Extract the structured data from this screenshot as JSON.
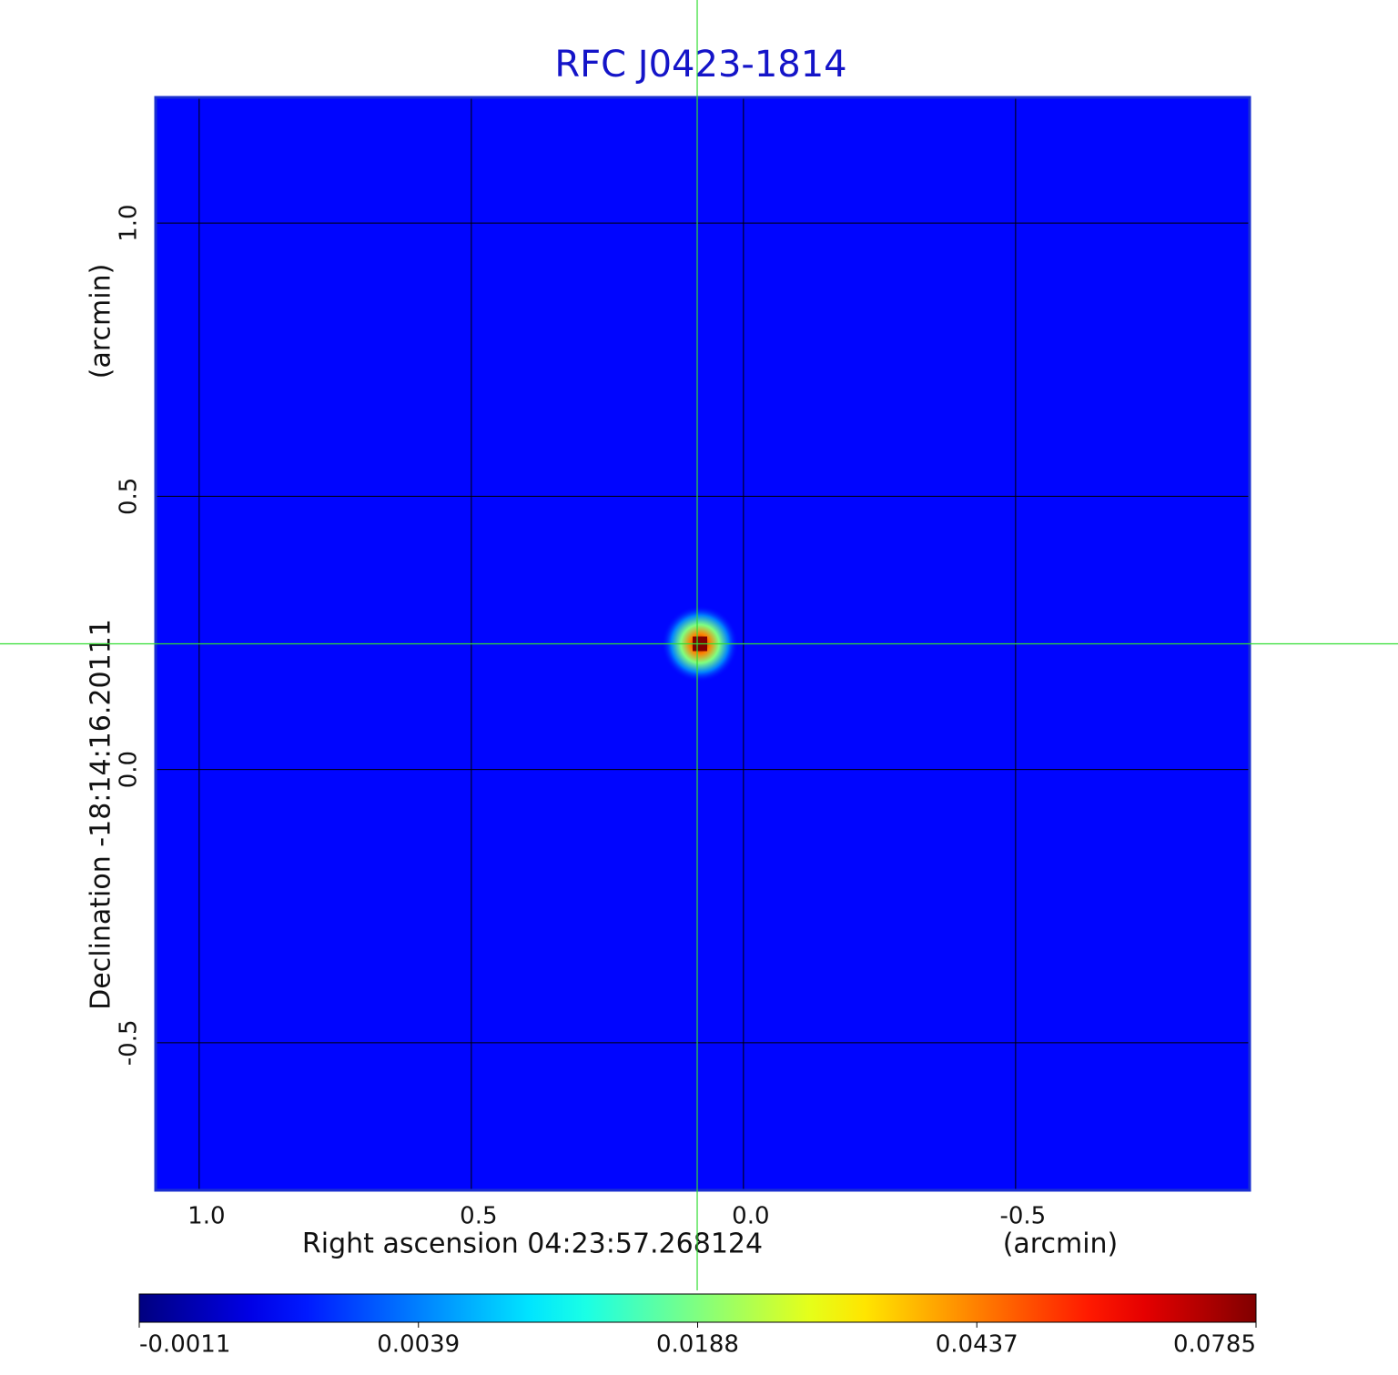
{
  "chart_data": {
    "type": "image",
    "title": "RFC J0423-1814",
    "x_label": "Right ascension  04:23:57.268124",
    "x_unit": "(arcmin)",
    "y_label": "Declination  -18:14:16.20111",
    "y_unit": "(arcmin)",
    "xlim": [
      1.08,
      -0.93
    ],
    "ylim": [
      -0.77,
      1.23
    ],
    "xticks": [
      {
        "value": 1,
        "label": "1.0"
      },
      0.5,
      {
        "value": 0,
        "label": "0.0"
      },
      -0.5
    ],
    "yticks": [
      {
        "value": 1,
        "label": "1.0"
      },
      0.5,
      {
        "value": 0,
        "label": "0.0"
      },
      -0.5
    ],
    "grid": true,
    "image": {
      "background": 0.0015,
      "peak": {
        "x": 0.08,
        "y": 0.23,
        "value": 0.0785
      }
    },
    "crosshair": {
      "x": 0.085,
      "y": 0.23,
      "color": "#33dd33"
    },
    "colorbar": {
      "ticks": [
        -0.0011,
        0.0039,
        0.0188,
        0.0437,
        0.0785
      ]
    }
  }
}
